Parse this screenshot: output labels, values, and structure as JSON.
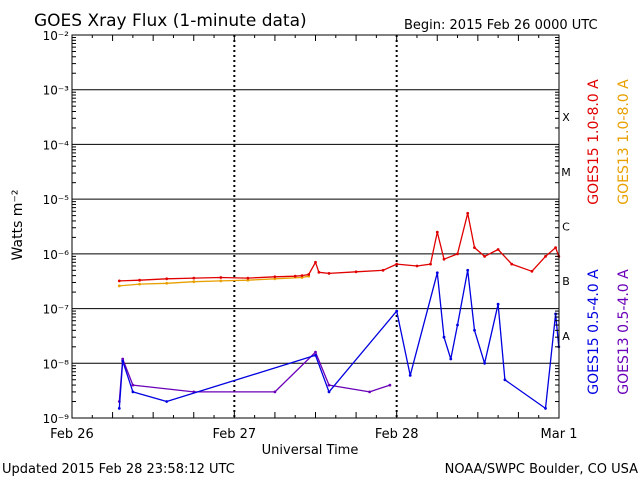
{
  "chart_data": {
    "type": "line",
    "title": "GOES Xray Flux (1-minute data)",
    "begin_label": "Begin:  2015 Feb 26 0000 UTC",
    "ylabel": "Watts m⁻²",
    "xlabel": "Universal Time",
    "footer_left": "Updated 2015 Feb 28 23:58:12 UTC",
    "footer_right": "NOAA/SWPC Boulder, CO USA",
    "y_scale": "log",
    "ylim": [
      1e-09,
      0.01
    ],
    "y_ticks": [
      {
        "value": 0.01,
        "label": "10⁻²"
      },
      {
        "value": 0.001,
        "label": "10⁻³"
      },
      {
        "value": 0.0001,
        "label": "10⁻⁴"
      },
      {
        "value": 1e-05,
        "label": "10⁻⁵"
      },
      {
        "value": 1e-06,
        "label": "10⁻⁶"
      },
      {
        "value": 1e-07,
        "label": "10⁻⁷"
      },
      {
        "value": 1e-08,
        "label": "10⁻⁸"
      },
      {
        "value": 1e-09,
        "label": "10⁻⁹"
      }
    ],
    "xlim": [
      "2015-02-26 00:00",
      "2015-03-01 00:00"
    ],
    "x_ticks": [
      {
        "value": "2015-02-26 00:00",
        "label": "Feb 26"
      },
      {
        "value": "2015-02-27 00:00",
        "label": "Feb 27"
      },
      {
        "value": "2015-02-28 00:00",
        "label": "Feb 28"
      },
      {
        "value": "2015-03-01 00:00",
        "label": "Mar 1"
      }
    ],
    "flare_classes": [
      {
        "label": "X",
        "value": 0.0001
      },
      {
        "label": "M",
        "value": 1e-05
      },
      {
        "label": "C",
        "value": 1e-06
      },
      {
        "label": "B",
        "value": 1e-07
      },
      {
        "label": "A",
        "value": 1e-08
      }
    ],
    "grid": true,
    "legend_placement": "right (vertical)",
    "series": [
      {
        "name": "GOES15 1.0-8.0 A",
        "color": "#e00000",
        "points": [
          [
            "2015-02-26 07:00",
            3.2e-07
          ],
          [
            "2015-02-26 10:00",
            3.3e-07
          ],
          [
            "2015-02-26 14:00",
            3.5e-07
          ],
          [
            "2015-02-26 18:00",
            3.6e-07
          ],
          [
            "2015-02-26 22:00",
            3.7e-07
          ],
          [
            "2015-02-27 02:00",
            3.6e-07
          ],
          [
            "2015-02-27 06:00",
            3.8e-07
          ],
          [
            "2015-02-27 09:00",
            3.9e-07
          ],
          [
            "2015-02-27 10:00",
            4e-07
          ],
          [
            "2015-02-27 11:00",
            4.2e-07
          ],
          [
            "2015-02-27 12:00",
            7e-07
          ],
          [
            "2015-02-27 12:30",
            4.6e-07
          ],
          [
            "2015-02-27 14:00",
            4.4e-07
          ],
          [
            "2015-02-27 18:00",
            4.7e-07
          ],
          [
            "2015-02-27 22:00",
            5e-07
          ],
          [
            "2015-02-28 00:00",
            6.5e-07
          ],
          [
            "2015-02-28 03:00",
            6e-07
          ],
          [
            "2015-02-28 05:00",
            6.5e-07
          ],
          [
            "2015-02-28 06:00",
            2.5e-06
          ],
          [
            "2015-02-28 07:00",
            8e-07
          ],
          [
            "2015-02-28 09:00",
            1e-06
          ],
          [
            "2015-02-28 10:30",
            5.5e-06
          ],
          [
            "2015-02-28 11:30",
            1.3e-06
          ],
          [
            "2015-02-28 13:00",
            9e-07
          ],
          [
            "2015-02-28 15:00",
            1.2e-06
          ],
          [
            "2015-02-28 17:00",
            6.5e-07
          ],
          [
            "2015-02-28 20:00",
            4.8e-07
          ],
          [
            "2015-02-28 22:00",
            9e-07
          ],
          [
            "2015-02-28 23:30",
            1.3e-06
          ],
          [
            "2015-02-28 23:58",
            9e-07
          ]
        ]
      },
      {
        "name": "GOES13 1.0-8.0 A",
        "color": "#e8a000",
        "points": [
          [
            "2015-02-26 07:00",
            2.6e-07
          ],
          [
            "2015-02-26 10:00",
            2.8e-07
          ],
          [
            "2015-02-26 14:00",
            2.9e-07
          ],
          [
            "2015-02-26 18:00",
            3.1e-07
          ],
          [
            "2015-02-26 22:00",
            3.2e-07
          ],
          [
            "2015-02-27 02:00",
            3.3e-07
          ],
          [
            "2015-02-27 06:00",
            3.5e-07
          ],
          [
            "2015-02-27 10:00",
            3.7e-07
          ],
          [
            "2015-02-27 11:00",
            3.9e-07
          ]
        ]
      },
      {
        "name": "GOES15 0.5-4.0 A",
        "color": "#0000e0",
        "points": [
          [
            "2015-02-26 07:00",
            1.5e-09
          ],
          [
            "2015-02-26 07:30",
            1.1e-08
          ],
          [
            "2015-02-26 09:00",
            3e-09
          ],
          [
            "2015-02-26 14:00",
            2e-09
          ],
          [
            "2015-02-27 12:00",
            1.4e-08
          ],
          [
            "2015-02-27 14:00",
            3e-09
          ],
          [
            "2015-02-28 00:00",
            9e-08
          ],
          [
            "2015-02-28 02:00",
            6e-09
          ],
          [
            "2015-02-28 06:00",
            4.5e-07
          ],
          [
            "2015-02-28 07:00",
            3e-08
          ],
          [
            "2015-02-28 08:00",
            1.2e-08
          ],
          [
            "2015-02-28 09:00",
            5e-08
          ],
          [
            "2015-02-28 10:30",
            5e-07
          ],
          [
            "2015-02-28 11:30",
            4e-08
          ],
          [
            "2015-02-28 13:00",
            1e-08
          ],
          [
            "2015-02-28 15:00",
            1.2e-07
          ],
          [
            "2015-02-28 16:00",
            5e-09
          ],
          [
            "2015-02-28 22:00",
            1.5e-09
          ],
          [
            "2015-02-28 23:30",
            8e-08
          ],
          [
            "2015-02-28 23:58",
            2e-08
          ]
        ]
      },
      {
        "name": "GOES13 0.5-4.0 A",
        "color": "#6a00b8",
        "points": [
          [
            "2015-02-26 07:00",
            2e-09
          ],
          [
            "2015-02-26 07:30",
            1.2e-08
          ],
          [
            "2015-02-26 09:00",
            4e-09
          ],
          [
            "2015-02-26 18:00",
            3e-09
          ],
          [
            "2015-02-27 06:00",
            3e-09
          ],
          [
            "2015-02-27 12:00",
            1.6e-08
          ],
          [
            "2015-02-27 14:00",
            4e-09
          ],
          [
            "2015-02-27 20:00",
            3e-09
          ],
          [
            "2015-02-27 23:00",
            4e-09
          ]
        ]
      }
    ]
  }
}
